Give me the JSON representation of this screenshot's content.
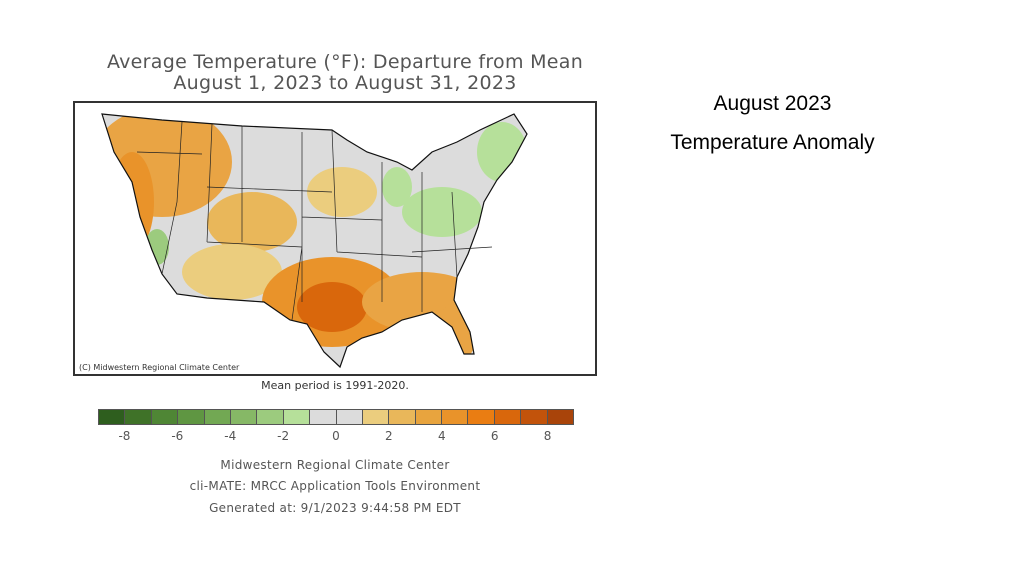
{
  "map": {
    "title_line1": "Average Temperature (°F): Departure from Mean",
    "title_line2": "August 1, 2023 to August 31, 2023",
    "credit": "(C) Midwestern Regional Climate Center",
    "mean_period": "Mean period is 1991-2020.",
    "legend": {
      "colors": [
        "#2e5e1e",
        "#3f7228",
        "#4f8635",
        "#5f9642",
        "#72a853",
        "#86b866",
        "#9ccb7e",
        "#b6e09a",
        "#dcdcdc",
        "#dcdcdc",
        "#ebcd7e",
        "#e9b75a",
        "#e8a43e",
        "#e9932a",
        "#ea7d12",
        "#d9670c",
        "#c2530b",
        "#a9440a"
      ],
      "ticks": [
        "-8",
        "-6",
        "-4",
        "-2",
        "0",
        "2",
        "4",
        "6",
        "8"
      ],
      "tick_values": [
        -8,
        -6,
        -4,
        -2,
        0,
        2,
        4,
        6,
        8
      ],
      "range": [
        -9,
        9
      ]
    },
    "footer": {
      "line1": "Midwestern Regional Climate Center",
      "line2": "cli-MATE: MRCC Application Tools Environment",
      "line3": "Generated at: 9/1/2023 9:44:58 PM EDT"
    }
  },
  "slide": {
    "heading_line1": "August 2023",
    "heading_line2": "Temperature Anomaly"
  }
}
